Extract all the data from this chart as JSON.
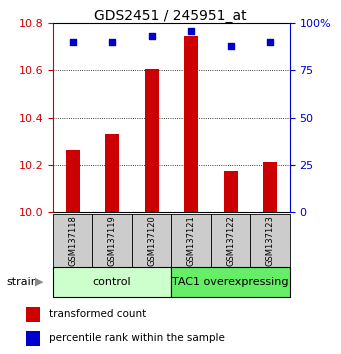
{
  "title": "GDS2451 / 245951_at",
  "samples": [
    "GSM137118",
    "GSM137119",
    "GSM137120",
    "GSM137121",
    "GSM137122",
    "GSM137123"
  ],
  "transformed_counts": [
    10.265,
    10.33,
    10.605,
    10.745,
    10.175,
    10.215
  ],
  "percentile_ranks": [
    90,
    90,
    93,
    96,
    88,
    90
  ],
  "ylim_left": [
    10.0,
    10.8
  ],
  "ylim_right": [
    0,
    100
  ],
  "yticks_left": [
    10.0,
    10.2,
    10.4,
    10.6,
    10.8
  ],
  "yticks_right": [
    0,
    25,
    50,
    75,
    100
  ],
  "bar_color": "#cc0000",
  "dot_color": "#0000cc",
  "bar_width": 0.35,
  "groups": [
    {
      "label": "control",
      "indices": [
        0,
        1,
        2
      ],
      "color": "#ccffcc"
    },
    {
      "label": "TAC1 overexpressing",
      "indices": [
        3,
        4,
        5
      ],
      "color": "#66ee66"
    }
  ],
  "group_label": "strain",
  "legend_bar_label": "transformed count",
  "legend_dot_label": "percentile rank within the sample",
  "left_tick_color": "#cc0000",
  "right_tick_color": "#0000cc",
  "sample_area_color": "#cccccc",
  "title_fontsize": 10,
  "tick_fontsize": 8,
  "sample_fontsize": 6,
  "group_fontsize": 8,
  "legend_fontsize": 7.5
}
